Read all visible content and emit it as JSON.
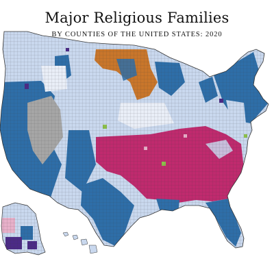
{
  "title": "Major Religious Families",
  "subtitle": "BY COUNTIES OF THE UNITED STATES: 2020",
  "palette": {
    "catholic": "#2e6ea8",
    "baptist": "#bf2a6e",
    "lutheran": "#c8762b",
    "lds": "#a6a6a6",
    "methodist": "#c9d8ee",
    "other_purple": "#4b2a86",
    "other_green": "#8cc04a",
    "other_pink": "#e7b0c9",
    "border": "#333333"
  }
}
